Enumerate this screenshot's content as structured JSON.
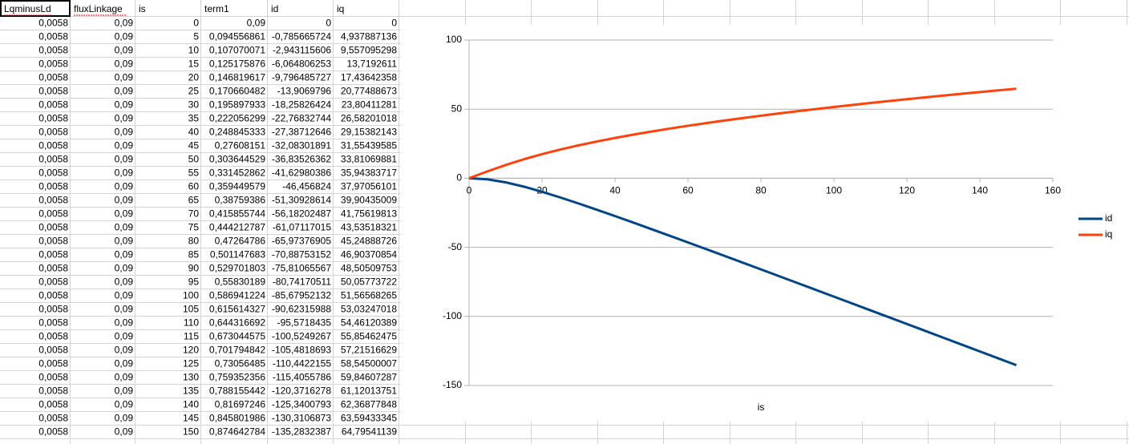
{
  "table": {
    "headers": [
      "LqminusLd",
      "fluxLinkage",
      "is",
      "term1",
      "id",
      "iq"
    ],
    "rows": [
      [
        "0,0058",
        "0,09",
        "0",
        "0,09",
        "0",
        "0"
      ],
      [
        "0,0058",
        "0,09",
        "5",
        "0,094556861",
        "-0,785665724",
        "4,937887136"
      ],
      [
        "0,0058",
        "0,09",
        "10",
        "0,107070071",
        "-2,943115606",
        "9,557095298"
      ],
      [
        "0,0058",
        "0,09",
        "15",
        "0,125175876",
        "-6,064806253",
        "13,7192611"
      ],
      [
        "0,0058",
        "0,09",
        "20",
        "0,146819617",
        "-9,796485727",
        "17,43642358"
      ],
      [
        "0,0058",
        "0,09",
        "25",
        "0,170660482",
        "-13,9069796",
        "20,77488673"
      ],
      [
        "0,0058",
        "0,09",
        "30",
        "0,195897933",
        "-18,25826424",
        "23,80411281"
      ],
      [
        "0,0058",
        "0,09",
        "35",
        "0,222056299",
        "-22,76832744",
        "26,58201018"
      ],
      [
        "0,0058",
        "0,09",
        "40",
        "0,248845333",
        "-27,38712646",
        "29,15382143"
      ],
      [
        "0,0058",
        "0,09",
        "45",
        "0,27608151",
        "-32,08301891",
        "31,55439585"
      ],
      [
        "0,0058",
        "0,09",
        "50",
        "0,303644529",
        "-36,83526362",
        "33,81069881"
      ],
      [
        "0,0058",
        "0,09",
        "55",
        "0,331452862",
        "-41,62980386",
        "35,94383717"
      ],
      [
        "0,0058",
        "0,09",
        "60",
        "0,359449579",
        "-46,456824",
        "37,97056101"
      ],
      [
        "0,0058",
        "0,09",
        "65",
        "0,38759386",
        "-51,30928614",
        "39,90435009"
      ],
      [
        "0,0058",
        "0,09",
        "70",
        "0,415855744",
        "-56,18202487",
        "41,75619813"
      ],
      [
        "0,0058",
        "0,09",
        "75",
        "0,444212787",
        "-61,07117015",
        "43,53518321"
      ],
      [
        "0,0058",
        "0,09",
        "80",
        "0,47264786",
        "-65,97376905",
        "45,24888726"
      ],
      [
        "0,0058",
        "0,09",
        "85",
        "0,501147683",
        "-70,88753152",
        "46,90370854"
      ],
      [
        "0,0058",
        "0,09",
        "90",
        "0,529701803",
        "-75,81065567",
        "48,50509753"
      ],
      [
        "0,0058",
        "0,09",
        "95",
        "0,55830189",
        "-80,74170511",
        "50,05773722"
      ],
      [
        "0,0058",
        "0,09",
        "100",
        "0,586941224",
        "-85,67952132",
        "51,56568265"
      ],
      [
        "0,0058",
        "0,09",
        "105",
        "0,615614327",
        "-90,62315988",
        "53,03247018"
      ],
      [
        "0,0058",
        "0,09",
        "110",
        "0,644316692",
        "-95,5718435",
        "54,46120389"
      ],
      [
        "0,0058",
        "0,09",
        "115",
        "0,673044575",
        "-100,5249267",
        "55,85462475"
      ],
      [
        "0,0058",
        "0,09",
        "120",
        "0,701794842",
        "-105,4818693",
        "57,21516629"
      ],
      [
        "0,0058",
        "0,09",
        "125",
        "0,73056485",
        "-110,4422155",
        "58,54500007"
      ],
      [
        "0,0058",
        "0,09",
        "130",
        "0,759352356",
        "-115,4055786",
        "59,84607287"
      ],
      [
        "0,0058",
        "0,09",
        "135",
        "0,788155442",
        "-120,3716278",
        "61,12013751"
      ],
      [
        "0,0058",
        "0,09",
        "140",
        "0,81697246",
        "-125,3400793",
        "62,36877848"
      ],
      [
        "0,0058",
        "0,09",
        "145",
        "0,845801986",
        "-130,3106873",
        "63,59433345"
      ],
      [
        "0,0058",
        "0,09",
        "150",
        "0,874642784",
        "-135,2832387",
        "64,79541139"
      ]
    ]
  },
  "chart_data": {
    "type": "line",
    "x_label": "is",
    "x": [
      0,
      5,
      10,
      15,
      20,
      25,
      30,
      35,
      40,
      45,
      50,
      55,
      60,
      65,
      70,
      75,
      80,
      85,
      90,
      95,
      100,
      105,
      110,
      115,
      120,
      125,
      130,
      135,
      140,
      145,
      150
    ],
    "series": [
      {
        "name": "id",
        "color": "#004586",
        "values": [
          0,
          -0.785665724,
          -2.943115606,
          -6.064806253,
          -9.796485727,
          -13.9069796,
          -18.25826424,
          -22.76832744,
          -27.38712646,
          -32.08301891,
          -36.83526362,
          -41.62980386,
          -46.456824,
          -51.30928614,
          -56.18202487,
          -61.07117015,
          -65.97376905,
          -70.88753152,
          -75.81065567,
          -80.74170511,
          -85.67952132,
          -90.62315988,
          -95.5718435,
          -100.5249267,
          -105.4818693,
          -110.4422155,
          -115.4055786,
          -120.3716278,
          -125.3400793,
          -130.3106873,
          -135.2832387
        ]
      },
      {
        "name": "iq",
        "color": "#ff420e",
        "values": [
          0,
          4.937887136,
          9.557095298,
          13.7192611,
          17.43642358,
          20.77488673,
          23.80411281,
          26.58201018,
          29.15382143,
          31.55439585,
          33.81069881,
          35.94383717,
          37.97056101,
          39.90435009,
          41.75619813,
          43.53518321,
          45.24888726,
          46.90370854,
          48.50509753,
          50.05773722,
          51.56568265,
          53.03247018,
          54.46120389,
          55.85462475,
          57.21516629,
          58.54500007,
          59.84607287,
          61.12013751,
          62.36877848,
          63.59433345,
          64.79541139
        ]
      }
    ],
    "xlim": [
      0,
      160
    ],
    "xticks": [
      0,
      20,
      40,
      60,
      80,
      100,
      120,
      140,
      160
    ],
    "ylim": [
      -150,
      100
    ],
    "yticks": [
      -150,
      -100,
      -50,
      0,
      50,
      100
    ],
    "grid": true,
    "legend": "right"
  }
}
